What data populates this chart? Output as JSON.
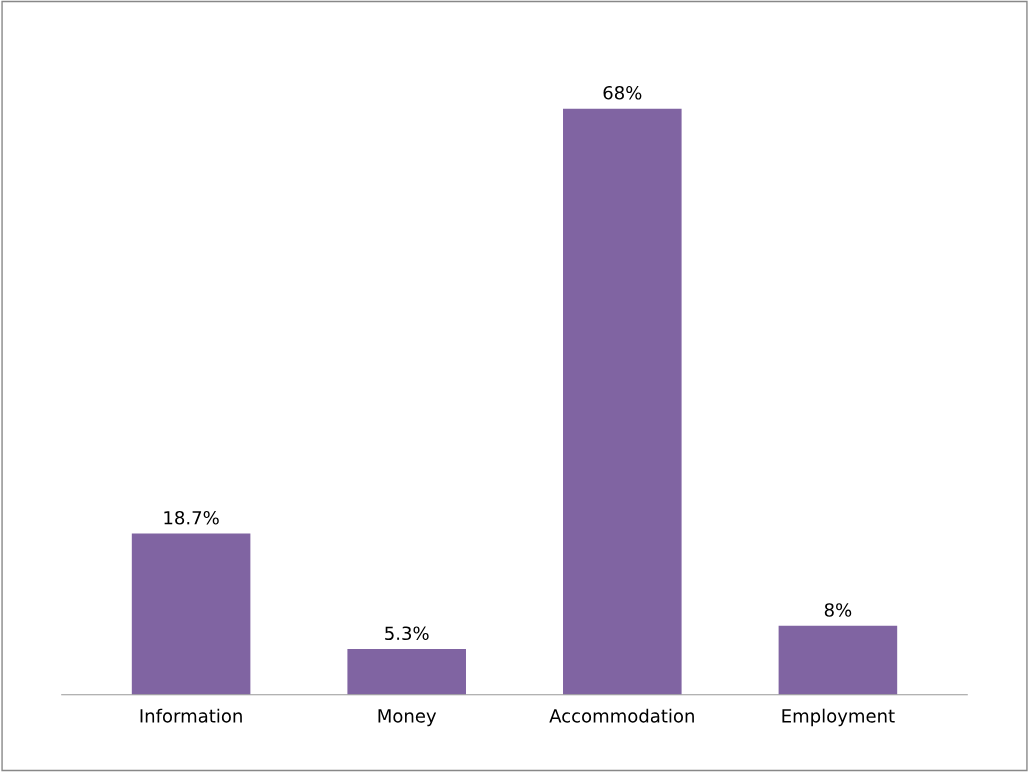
{
  "chart_data": {
    "type": "bar",
    "categories": [
      "Information",
      "Money",
      "Accommodation",
      "Employment"
    ],
    "values": [
      18.7,
      5.3,
      68,
      8
    ],
    "value_labels": [
      "18.7%",
      "5.3%",
      "68%",
      "8%"
    ],
    "color": "#8064a2",
    "grid": false
  }
}
